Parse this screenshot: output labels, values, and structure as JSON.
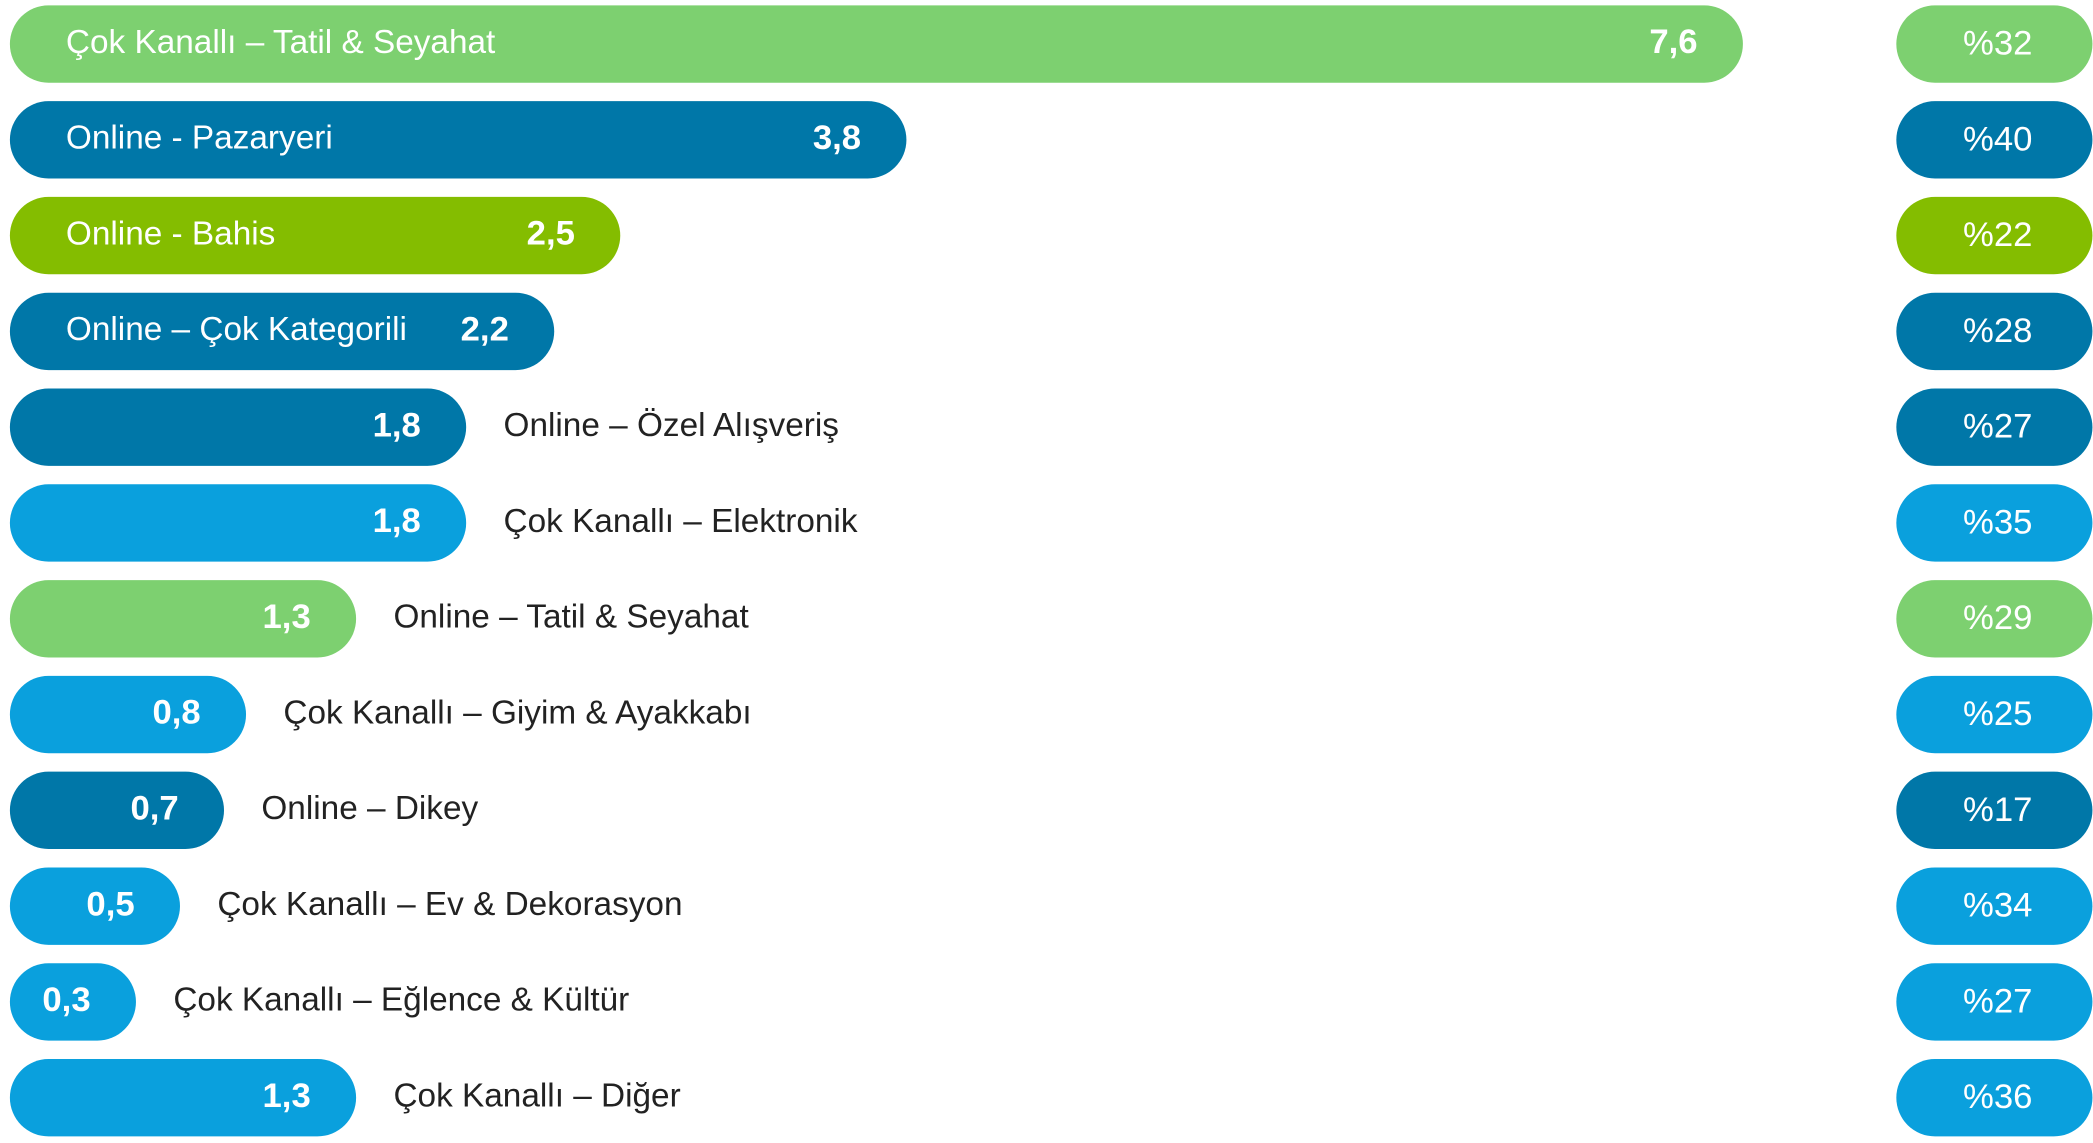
{
  "chart_data": {
    "type": "bar",
    "categories": [
      "Çok Kanallı – Tatil & Seyahat",
      "Online - Pazaryeri",
      "Online - Bahis",
      "Online – Çok Kategorili",
      "Online – Özel Alışveriş",
      "Çok Kanallı – Elektronik",
      "Online – Tatil & Seyahat",
      "Çok Kanallı – Giyim & Ayakkabı",
      "Online – Dikey",
      "Çok Kanallı – Ev & Dekorasyon",
      "Çok Kanallı – Eğlence & Kültür",
      "Çok Kanallı – Diğer"
    ],
    "values": [
      7.6,
      3.8,
      2.5,
      2.2,
      1.8,
      1.8,
      1.3,
      0.8,
      0.7,
      0.5,
      0.3,
      1.3
    ],
    "value_labels": [
      "7,6",
      "3,8",
      "2,5",
      "2,2",
      "1,8",
      "1,8",
      "1,3",
      "0,8",
      "0,7",
      "0,5",
      "0,3",
      "1,3"
    ],
    "colors": [
      "#7dd070",
      "#0077a8",
      "#84bd00",
      "#0077a8",
      "#0077a8",
      "#0aa0dd",
      "#7dd070",
      "#0aa0dd",
      "#0077a8",
      "#0aa0dd",
      "#0aa0dd",
      "#0aa0dd"
    ],
    "shares": [
      32,
      40,
      22,
      28,
      27,
      35,
      29,
      25,
      17,
      34,
      27,
      36
    ],
    "share_labels": [
      "%32",
      "%40",
      "%22",
      "%28",
      "%27",
      "%35",
      "%29",
      "%25",
      "%17",
      "%34",
      "%27",
      "%36"
    ]
  }
}
